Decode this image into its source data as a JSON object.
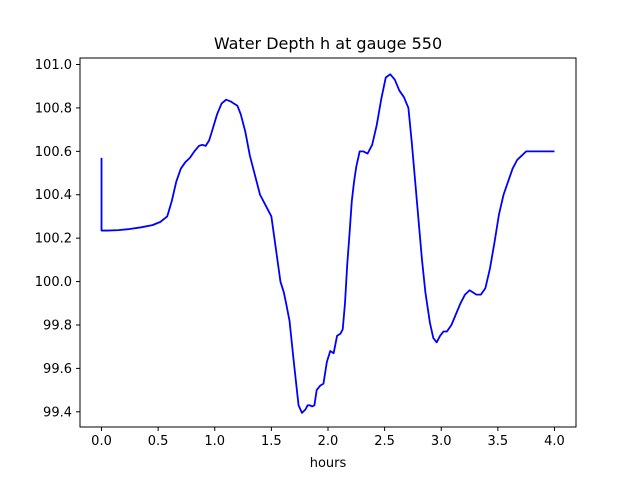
{
  "chart_data": {
    "type": "line",
    "title": "Water Depth h at gauge 550",
    "xlabel": "hours",
    "ylabel": "",
    "xlim": [
      -0.19,
      4.19
    ],
    "ylim": [
      99.33,
      101.03
    ],
    "xticks": [
      "0.0",
      "0.5",
      "1.0",
      "1.5",
      "2.0",
      "2.5",
      "3.0",
      "3.5",
      "4.0"
    ],
    "yticks": [
      "99.4",
      "99.6",
      "99.8",
      "100.0",
      "100.2",
      "100.4",
      "100.6",
      "100.8",
      "101.0"
    ],
    "grid": false,
    "series": [
      {
        "color": "#0000ff",
        "x": [
          0.0,
          0.0,
          0.05,
          0.15,
          0.25,
          0.35,
          0.45,
          0.52,
          0.58,
          0.62,
          0.66,
          0.7,
          0.74,
          0.78,
          0.82,
          0.86,
          0.89,
          0.92,
          0.95,
          0.98,
          1.02,
          1.06,
          1.1,
          1.14,
          1.17,
          1.2,
          1.23,
          1.27,
          1.31,
          1.35,
          1.4,
          1.45,
          1.5,
          1.54,
          1.58,
          1.61,
          1.63,
          1.66,
          1.7,
          1.74,
          1.77,
          1.8,
          1.82,
          1.84,
          1.86,
          1.88,
          1.9,
          1.93,
          1.96,
          1.99,
          2.02,
          2.05,
          2.08,
          2.11,
          2.13,
          2.15,
          2.17,
          2.19,
          2.21,
          2.23,
          2.25,
          2.28,
          2.31,
          2.35,
          2.39,
          2.43,
          2.47,
          2.51,
          2.55,
          2.59,
          2.63,
          2.67,
          2.71,
          2.74,
          2.77,
          2.8,
          2.83,
          2.86,
          2.9,
          2.93,
          2.96,
          2.99,
          3.02,
          3.05,
          3.09,
          3.13,
          3.17,
          3.21,
          3.25,
          3.28,
          3.31,
          3.35,
          3.39,
          3.43,
          3.47,
          3.51,
          3.55,
          3.59,
          3.63,
          3.67,
          3.71,
          3.75,
          3.79,
          3.83,
          3.87,
          3.91,
          3.95,
          4.0
        ],
        "values": [
          100.57,
          100.235,
          100.235,
          100.237,
          100.242,
          100.25,
          100.26,
          100.275,
          100.3,
          100.37,
          100.46,
          100.52,
          100.55,
          100.57,
          100.6,
          100.625,
          100.63,
          100.625,
          100.65,
          100.7,
          100.77,
          100.82,
          100.838,
          100.83,
          100.82,
          100.81,
          100.77,
          100.69,
          100.58,
          100.5,
          100.4,
          100.35,
          100.3,
          100.15,
          100.0,
          99.95,
          99.9,
          99.82,
          99.62,
          99.43,
          99.395,
          99.41,
          99.43,
          99.43,
          99.425,
          99.43,
          99.5,
          99.52,
          99.53,
          99.63,
          99.68,
          99.67,
          99.75,
          99.76,
          99.78,
          99.9,
          100.08,
          100.22,
          100.37,
          100.46,
          100.53,
          100.6,
          100.6,
          100.59,
          100.63,
          100.72,
          100.84,
          100.94,
          100.955,
          100.93,
          100.88,
          100.85,
          100.8,
          100.64,
          100.46,
          100.28,
          100.1,
          99.95,
          99.81,
          99.74,
          99.72,
          99.75,
          99.77,
          99.77,
          99.8,
          99.85,
          99.9,
          99.94,
          99.96,
          99.95,
          99.94,
          99.94,
          99.97,
          100.06,
          100.18,
          100.31,
          100.4,
          100.46,
          100.52,
          100.56,
          100.58,
          100.6,
          100.6,
          100.6,
          100.6,
          100.6,
          100.6,
          100.6
        ]
      }
    ]
  }
}
